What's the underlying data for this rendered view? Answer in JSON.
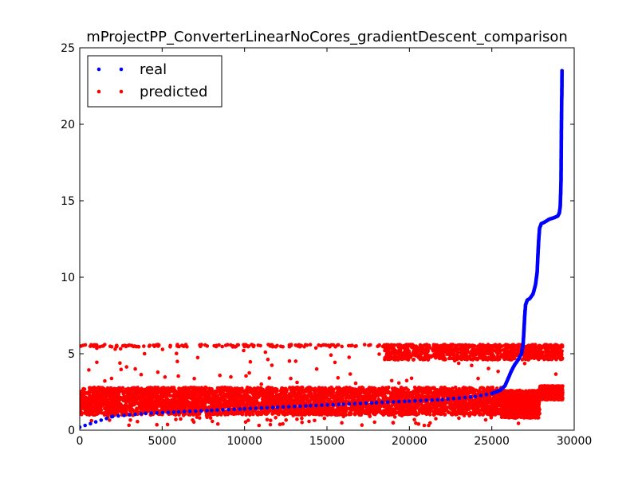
{
  "chart_data": {
    "type": "scatter",
    "title": "mProjectPP_ConverterLinearNoCores_gradientDescent_comparison",
    "xlabel": "",
    "ylabel": "",
    "xlim": [
      0,
      30000
    ],
    "ylim": [
      0,
      25
    ],
    "xticks": [
      0,
      5000,
      10000,
      15000,
      20000,
      25000,
      30000
    ],
    "yticks": [
      0,
      5,
      10,
      15,
      20,
      25
    ],
    "grid": false,
    "legend": {
      "placement": "top-left",
      "entries": [
        "real",
        "predicted"
      ]
    },
    "series": [
      {
        "name": "real",
        "color": "#0000ff",
        "marker": "dot",
        "points": [
          [
            0,
            0.2
          ],
          [
            2000,
            0.9
          ],
          [
            4000,
            1.1
          ],
          [
            6000,
            1.2
          ],
          [
            8000,
            1.3
          ],
          [
            10000,
            1.4
          ],
          [
            12000,
            1.5
          ],
          [
            14000,
            1.6
          ],
          [
            16000,
            1.7
          ],
          [
            18000,
            1.8
          ],
          [
            20000,
            1.9
          ],
          [
            22000,
            2.0
          ],
          [
            24000,
            2.2
          ],
          [
            25000,
            2.4
          ],
          [
            25500,
            2.6
          ],
          [
            25800,
            2.9
          ],
          [
            26000,
            3.4
          ],
          [
            26200,
            3.9
          ],
          [
            26400,
            4.3
          ],
          [
            26600,
            4.6
          ],
          [
            26800,
            5.0
          ],
          [
            26900,
            5.6
          ],
          [
            26950,
            6.5
          ],
          [
            27000,
            7.5
          ],
          [
            27050,
            8.2
          ],
          [
            27150,
            8.5
          ],
          [
            27300,
            8.6
          ],
          [
            27500,
            8.9
          ],
          [
            27650,
            9.5
          ],
          [
            27750,
            10.3
          ],
          [
            27800,
            11.5
          ],
          [
            27850,
            12.5
          ],
          [
            27900,
            13.2
          ],
          [
            28000,
            13.5
          ],
          [
            28200,
            13.6
          ],
          [
            28500,
            13.8
          ],
          [
            28800,
            13.9
          ],
          [
            29000,
            14.0
          ],
          [
            29100,
            14.2
          ],
          [
            29150,
            14.6
          ],
          [
            29180,
            15.5
          ],
          [
            29200,
            16.3
          ],
          [
            29210,
            17.9
          ],
          [
            29220,
            19.2
          ],
          [
            29230,
            20.5
          ],
          [
            29240,
            21.5
          ],
          [
            29250,
            22.0
          ],
          [
            29260,
            23.5
          ]
        ]
      },
      {
        "name": "predicted",
        "color": "#ff0000",
        "marker": "dot",
        "bands": [
          {
            "x": [
              0,
              25600
            ],
            "y": [
              1.0,
              2.8
            ]
          },
          {
            "x": [
              25600,
              27900
            ],
            "y": [
              0.8,
              2.6
            ]
          },
          {
            "x": [
              27900,
              29300
            ],
            "y": [
              2.0,
              2.9
            ]
          },
          {
            "x": [
              18500,
              29300
            ],
            "y": [
              4.6,
              5.6
            ]
          }
        ],
        "upper_level": 5.6,
        "upper_level_x": [
          0,
          29300
        ]
      }
    ]
  }
}
